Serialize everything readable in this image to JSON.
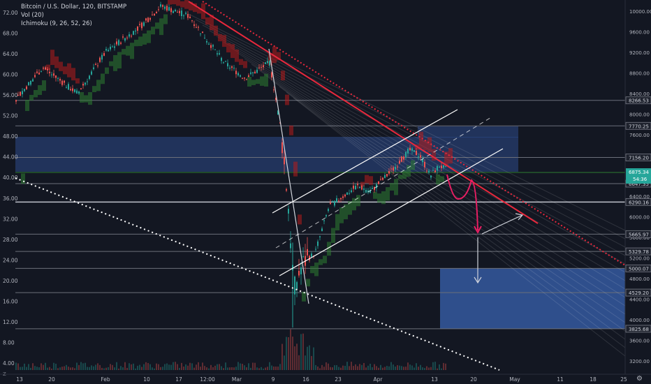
{
  "legend": {
    "title": "Bitcoin / U.S. Dollar, 120, BITSTAMP",
    "vol": "Vol (20)",
    "ichimoku": "Ichimoku (9, 26, 52, 26)"
  },
  "left_axis": [
    "72.00",
    "68.00",
    "64.00",
    "60.00",
    "56.00",
    "52.00",
    "48.00",
    "44.00",
    "40.00",
    "36.00",
    "32.00",
    "28.00",
    "24.00",
    "20.00",
    "16.00",
    "12.00",
    "8.00",
    "4.00"
  ],
  "right_axis": [
    "10000.00",
    "9600.00",
    "9200.00",
    "8800.00",
    "8400.00",
    "8000.00",
    "7600.00",
    "7200.00",
    "6800.00",
    "6400.00",
    "6000.00",
    "5600.00",
    "5200.00",
    "4800.00",
    "4400.00",
    "4000.00",
    "3600.00",
    "3200.00"
  ],
  "price_levels": [
    {
      "label": "8266.53",
      "color": "#787b86"
    },
    {
      "label": "7770.25",
      "color": "#787b86"
    },
    {
      "label": "7156.20",
      "color": "#787b86"
    },
    {
      "label": "6647.35",
      "color": "#787b86"
    },
    {
      "label": "6290.16",
      "color": "#787b86"
    },
    {
      "label": "5665.97",
      "color": "#787b86"
    },
    {
      "label": "5329.78",
      "color": "#787b86"
    },
    {
      "label": "5000.07",
      "color": "#787b86"
    },
    {
      "label": "4529.20",
      "color": "#787b86"
    },
    {
      "label": "3825.68",
      "color": "#787b86"
    }
  ],
  "current_price": {
    "label": "6875.34",
    "countdown": "54:36",
    "color": "#26a69a"
  },
  "time_axis": [
    "13",
    "20",
    "Feb",
    "10",
    "17",
    "12:00",
    "Mar",
    "9",
    "16",
    "23",
    "Apr",
    "13",
    "20",
    "May",
    "11",
    "18",
    "25"
  ],
  "z_label": "Z",
  "corner_icon": "gear-icon",
  "colors": {
    "background": "#131722",
    "bull": "#26a69a",
    "bear": "#ef5350",
    "resistance": "#e8283c",
    "zone": "#2d4a8a",
    "channel": "#ffffff"
  }
}
